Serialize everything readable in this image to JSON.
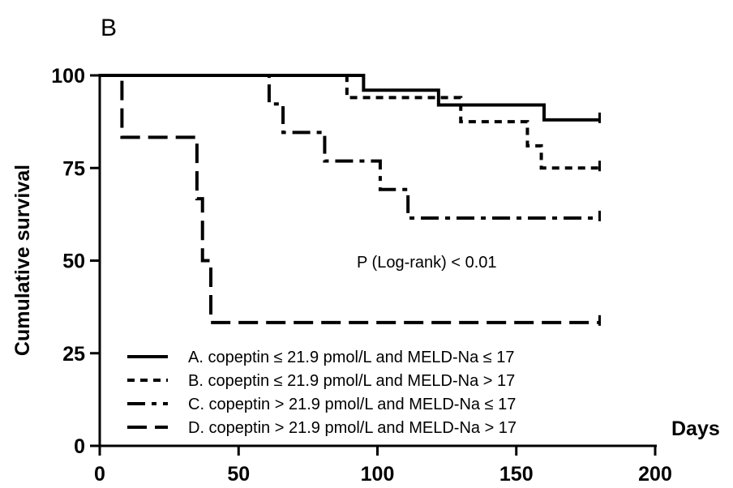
{
  "panel_label": "B",
  "annotation": "P  (Log-rank) < 0.01",
  "chart_data": {
    "type": "line",
    "title": "",
    "xlabel": "Days",
    "ylabel": "Cumulative survival",
    "xlim": [
      0,
      200
    ],
    "ylim": [
      0,
      100
    ],
    "xticks": [
      0,
      50,
      100,
      150,
      200
    ],
    "yticks": [
      0,
      25,
      50,
      75,
      100
    ],
    "xtick_labels": [
      "0",
      "50",
      "100",
      "150",
      "200"
    ],
    "ytick_labels": [
      "0",
      "25",
      "50",
      "75",
      "100"
    ],
    "grid": false,
    "legend_position": "bottom-left",
    "step": true,
    "series": [
      {
        "name": "A. copeptin ≤ 21.9 pmol/L and MELD-Na ≤ 17",
        "dash": "solid",
        "x": [
          0,
          95,
          122,
          160,
          180
        ],
        "y": [
          100,
          96,
          92,
          88,
          88
        ]
      },
      {
        "name": "B. copeptin ≤ 21.9 pmol/L and MELD-Na > 17",
        "dash": "dotted",
        "x": [
          0,
          89,
          130,
          154,
          159,
          180
        ],
        "y": [
          100,
          94,
          87.5,
          81,
          75,
          75
        ]
      },
      {
        "name": "C. copeptin > 21.9 pmol/L and MELD-Na ≤ 17",
        "dash": "dash-dot",
        "x": [
          0,
          61,
          66,
          81,
          101,
          111,
          180
        ],
        "y": [
          100,
          92.3,
          84.6,
          76.9,
          69.2,
          61.5,
          61.5
        ]
      },
      {
        "name": "D. copeptin > 21.9 pmol/L and MELD-Na > 17",
        "dash": "long-dash",
        "x": [
          0,
          8,
          35,
          37,
          40,
          180
        ],
        "y": [
          100,
          83.3,
          66.7,
          50,
          33.3,
          33.3
        ]
      }
    ]
  }
}
